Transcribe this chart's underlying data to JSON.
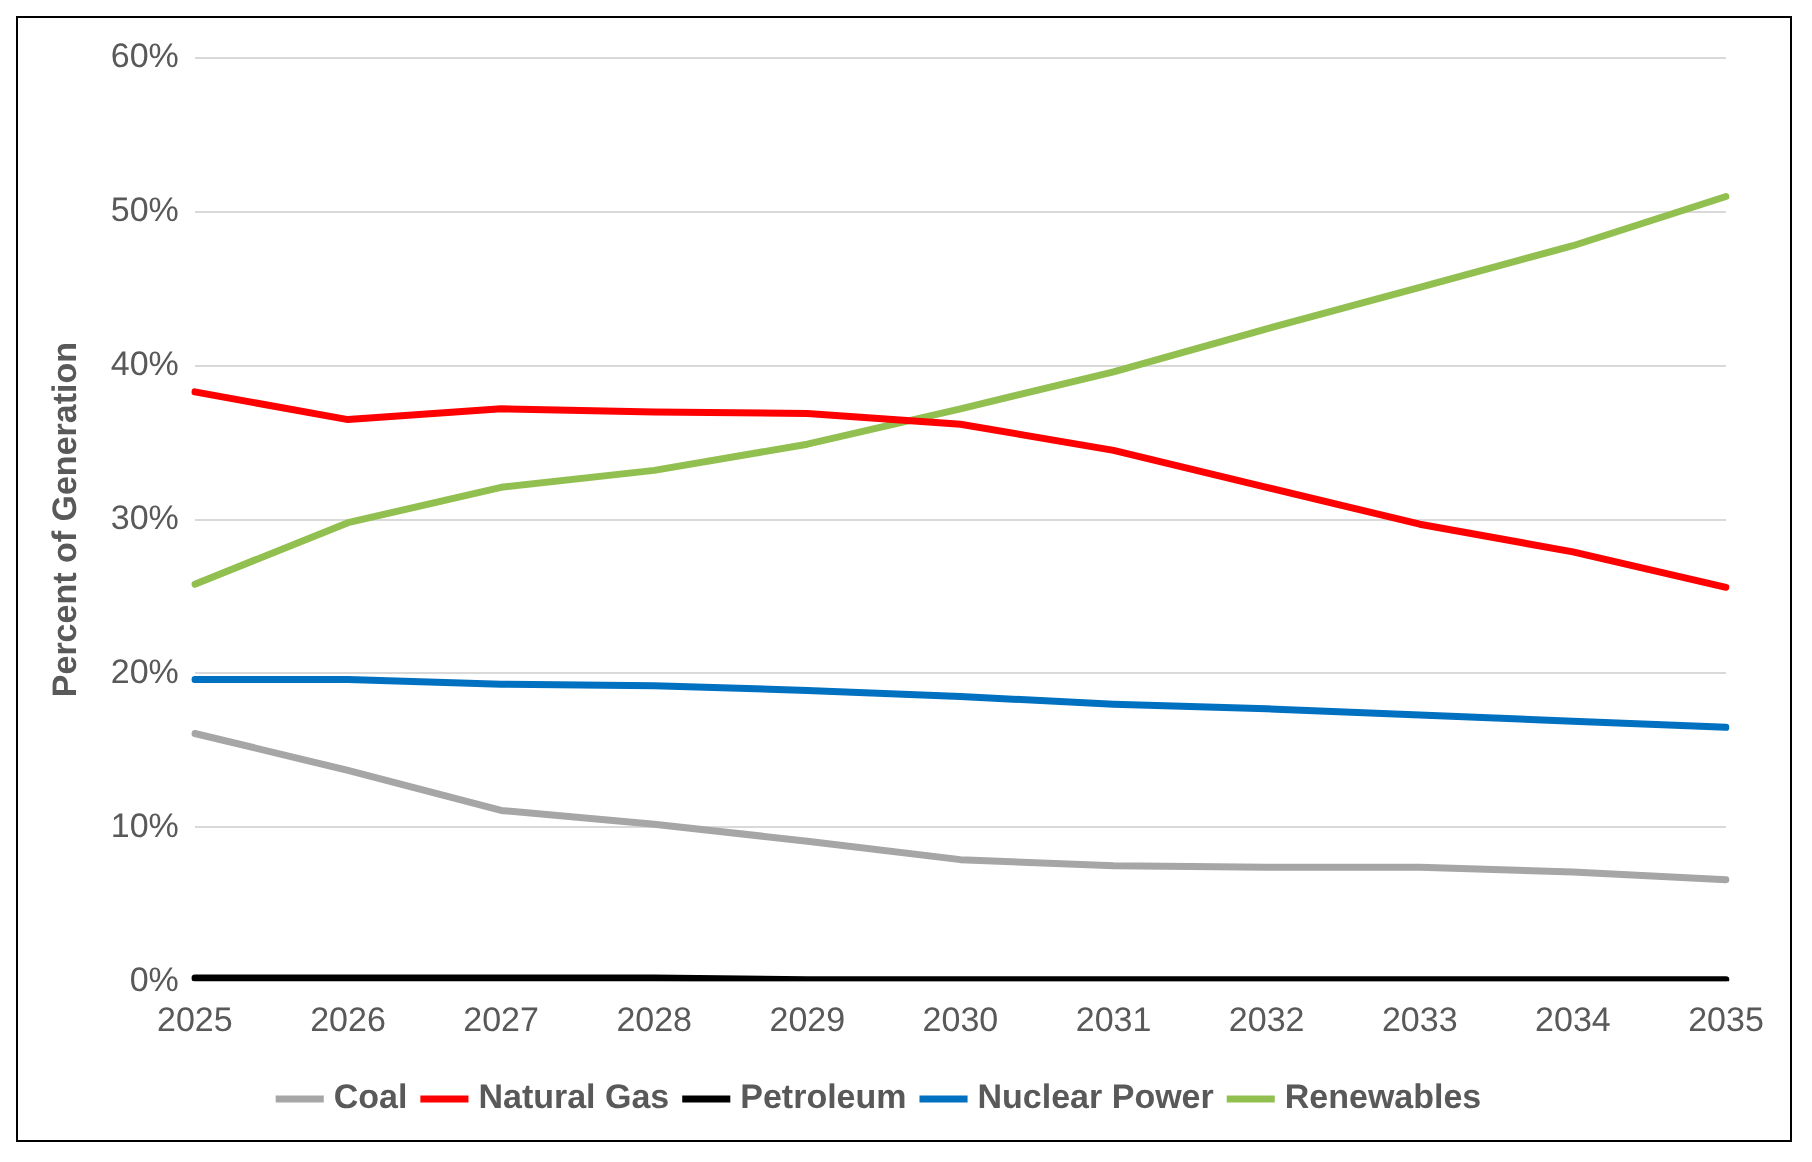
{
  "chart_data": {
    "type": "line",
    "ylabel": "Percent of Generation",
    "categories": [
      "2025",
      "2026",
      "2027",
      "2028",
      "2029",
      "2030",
      "2031",
      "2032",
      "2033",
      "2034",
      "2035"
    ],
    "series": [
      {
        "name": "Coal",
        "color": "#a6a6a6",
        "values": [
          16.1,
          13.7,
          11.1,
          10.2,
          9.1,
          7.9,
          7.5,
          7.4,
          7.4,
          7.1,
          6.6
        ]
      },
      {
        "name": "Natural Gas",
        "color": "#ff0000",
        "values": [
          38.3,
          36.5,
          37.2,
          37.0,
          36.9,
          36.2,
          34.5,
          32.1,
          29.7,
          27.9,
          25.6
        ]
      },
      {
        "name": "Petroleum",
        "color": "#000000",
        "values": [
          0.2,
          0.2,
          0.2,
          0.2,
          0.1,
          0.1,
          0.1,
          0.1,
          0.1,
          0.1,
          0.1
        ]
      },
      {
        "name": "Nuclear Power",
        "color": "#0070c0",
        "values": [
          19.6,
          19.6,
          19.3,
          19.2,
          18.9,
          18.5,
          18.0,
          17.7,
          17.3,
          16.9,
          16.5
        ]
      },
      {
        "name": "Renewables",
        "color": "#92c050",
        "values": [
          25.8,
          29.8,
          32.1,
          33.2,
          34.9,
          37.2,
          39.6,
          42.4,
          45.1,
          47.8,
          51.0
        ]
      }
    ],
    "ylim": [
      0,
      60
    ],
    "yticks": [
      {
        "value": 0,
        "label": "0%"
      },
      {
        "value": 10,
        "label": "10%"
      },
      {
        "value": 20,
        "label": "20%"
      },
      {
        "value": 30,
        "label": "30%"
      },
      {
        "value": 40,
        "label": "40%"
      },
      {
        "value": 50,
        "label": "50%"
      },
      {
        "value": 60,
        "label": "60%"
      }
    ],
    "grid": "y",
    "legend": "bottom",
    "marker": "none",
    "line_style": "solid"
  }
}
